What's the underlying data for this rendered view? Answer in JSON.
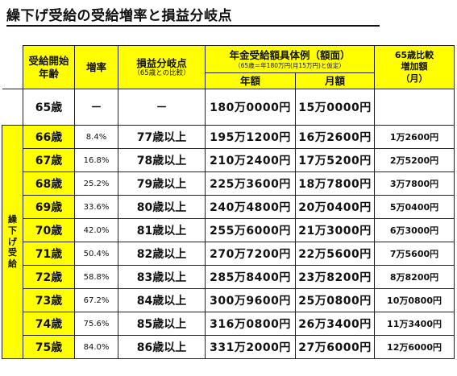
{
  "title": "繰下げ受給の受給増率と損益分岐点",
  "header": {
    "start_age_line1": "受給開始",
    "start_age_line2": "年齢",
    "rate": "増率",
    "breakeven": "損益分岐点",
    "breakeven_sub": "（65歳との比較）",
    "example": "年金受給額具体例（額面）",
    "example_sub": "（65歳＝年180万円(月15万円)と仮定）",
    "year": "年額",
    "month": "月額",
    "increase_line1": "65歳比較",
    "increase_line2": "増加額",
    "increase_line3": "（月）"
  },
  "side_label": [
    "繰",
    "下",
    "げ",
    "受",
    "給"
  ],
  "row65": {
    "age": "65歳",
    "rate": "－",
    "breakeven": "－",
    "year": "180万0000円",
    "month": "15万0000円",
    "increase": ""
  },
  "rows": [
    {
      "age": "66歳",
      "rate": "8.4%",
      "breakeven": "77歳以上",
      "year": "195万1200円",
      "month": "16万2600円",
      "increase": "1万2600円"
    },
    {
      "age": "67歳",
      "rate": "16.8%",
      "breakeven": "78歳以上",
      "year": "210万2400円",
      "month": "17万5200円",
      "increase": "2万5200円"
    },
    {
      "age": "68歳",
      "rate": "25.2%",
      "breakeven": "79歳以上",
      "year": "225万3600円",
      "month": "18万7800円",
      "increase": "3万7800円"
    },
    {
      "age": "69歳",
      "rate": "33.6%",
      "breakeven": "80歳以上",
      "year": "240万4800円",
      "month": "20万0400円",
      "increase": "5万0400円"
    },
    {
      "age": "70歳",
      "rate": "42.0%",
      "breakeven": "81歳以上",
      "year": "255万6000円",
      "month": "21万3000円",
      "increase": "6万3000円"
    },
    {
      "age": "71歳",
      "rate": "50.4%",
      "breakeven": "82歳以上",
      "year": "270万7200円",
      "month": "22万5600円",
      "increase": "7万5600円"
    },
    {
      "age": "72歳",
      "rate": "58.8%",
      "breakeven": "83歳以上",
      "year": "285万8400円",
      "month": "23万8200円",
      "increase": "8万8200円"
    },
    {
      "age": "73歳",
      "rate": "67.2%",
      "breakeven": "84歳以上",
      "year": "300万9600円",
      "month": "25万0800円",
      "increase": "10万0800円"
    },
    {
      "age": "74歳",
      "rate": "75.6%",
      "breakeven": "85歳以上",
      "year": "316万0800円",
      "month": "26万3400円",
      "increase": "11万3400円"
    },
    {
      "age": "75歳",
      "rate": "84.0%",
      "breakeven": "86歳以上",
      "year": "331万2000円",
      "month": "27万6000円",
      "increase": "12万6000円"
    }
  ]
}
